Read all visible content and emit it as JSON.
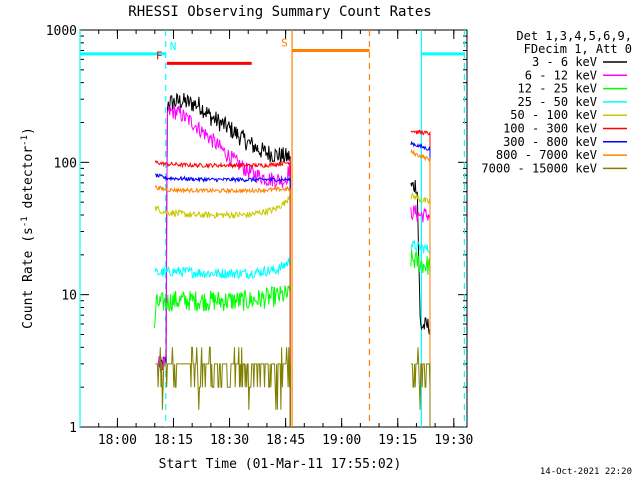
{
  "chart_data": {
    "type": "line",
    "title": "RHESSI Observing Summary Count Rates",
    "xlabel": "Start Time (01-Mar-11 17:55:02)",
    "ylabel": "Count Rate (s⁻¹ detector⁻¹)",
    "ylabel_parts": {
      "base": "Count Rate (s",
      "exp1": "-1",
      "mid": " detector",
      "exp2": "-1",
      "end": ")"
    },
    "yscale": "log",
    "ylim": [
      1,
      1000
    ],
    "xlim_minutes_after_start": [
      -5.04,
      98.5
    ],
    "x_ticks": [
      {
        "label": "18:00",
        "min": 4.97
      },
      {
        "label": "18:15",
        "min": 19.97
      },
      {
        "label": "18:30",
        "min": 34.97
      },
      {
        "label": "18:45",
        "min": 49.97
      },
      {
        "label": "19:00",
        "min": 64.97
      },
      {
        "label": "19:15",
        "min": 79.97
      },
      {
        "label": "19:30",
        "min": 94.97
      }
    ],
    "y_ticks": [
      {
        "label": "1",
        "v": 1
      },
      {
        "label": "10",
        "v": 10
      },
      {
        "label": "100",
        "v": 100
      },
      {
        "label": "1000",
        "v": 1000
      }
    ],
    "legend_header": [
      "Det 1,3,4,5,6,9,",
      "FDecim 1, Att 0"
    ],
    "legend_position": "right",
    "timestamp": "14-Oct-2021 22:20",
    "flags": [
      {
        "letter": "N",
        "color": "#00ffff",
        "level": 660,
        "segments": [
          [
            -5.04,
            17.9
          ],
          [
            86.3,
            97.8
          ]
        ]
      },
      {
        "letter": "F",
        "color": "#ff0000",
        "level": 560,
        "segments": [
          [
            18.2,
            40.9
          ]
        ]
      },
      {
        "letter": "S",
        "color": "#ff8000",
        "level": 700,
        "segments": [
          [
            51.7,
            72.4
          ]
        ]
      }
    ],
    "markers": [
      {
        "min": -5.04,
        "color": "#00ffff",
        "style": "solid"
      },
      {
        "min": 17.9,
        "color": "#00ffff",
        "style": "dashed"
      },
      {
        "min": 51.7,
        "color": "#ff8000",
        "style": "solid"
      },
      {
        "min": 72.4,
        "color": "#ff8000",
        "style": "dashed"
      },
      {
        "min": 86.3,
        "color": "#00ffff",
        "style": "solid"
      },
      {
        "min": 97.8,
        "color": "#00ffff",
        "style": "dashed"
      }
    ],
    "series": [
      {
        "name": "3 - 6 keV",
        "color": "#000000",
        "noise": 0.07,
        "seg1": [
          [
            15.9,
            3.0
          ],
          [
            17.6,
            3.0
          ],
          [
            18.0,
            3.2
          ],
          [
            18.3,
            280
          ],
          [
            22.0,
            290
          ],
          [
            27.0,
            270
          ],
          [
            30.0,
            220
          ],
          [
            35.0,
            180
          ],
          [
            40.0,
            140
          ],
          [
            44.0,
            120
          ],
          [
            50.0,
            110
          ],
          [
            51.2,
            110
          ]
        ],
        "seg2": [
          [
            83.5,
            65
          ],
          [
            84.9,
            68
          ],
          [
            85.2,
            60
          ],
          [
            86.0,
            5.8
          ],
          [
            88.6,
            5.8
          ]
        ]
      },
      {
        "name": "6 - 12 keV",
        "color": "#ff00ff",
        "noise": 0.06,
        "seg1": [
          [
            15.9,
            3.0
          ],
          [
            17.6,
            3.0
          ],
          [
            18.0,
            3.2
          ],
          [
            18.3,
            240
          ],
          [
            21.0,
            240
          ],
          [
            25.0,
            200
          ],
          [
            30.0,
            150
          ],
          [
            35.0,
            110
          ],
          [
            40.0,
            85
          ],
          [
            45.0,
            75
          ],
          [
            50.0,
            73
          ],
          [
            51.2,
            95
          ]
        ],
        "seg2": [
          [
            83.5,
            42
          ],
          [
            84.9,
            42
          ],
          [
            85.2,
            40
          ],
          [
            86.0,
            40
          ],
          [
            88.6,
            40
          ]
        ]
      },
      {
        "name": "12 - 25 keV",
        "color": "#00ff00",
        "noise": 0.08,
        "seg1": [
          [
            14.8,
            5.0
          ],
          [
            15.3,
            8.5
          ],
          [
            20.0,
            9.0
          ],
          [
            30.0,
            9.0
          ],
          [
            40.0,
            9.0
          ],
          [
            50.5,
            10
          ],
          [
            51.2,
            10
          ]
        ],
        "seg2": [
          [
            83.5,
            18.5
          ],
          [
            84.9,
            18
          ],
          [
            86.5,
            17
          ],
          [
            88.6,
            16.5
          ]
        ]
      },
      {
        "name": "25 - 50 keV",
        "color": "#00ffff",
        "noise": 0.04,
        "seg1": [
          [
            15.1,
            14.5
          ],
          [
            20.0,
            15.0
          ],
          [
            30.0,
            14.5
          ],
          [
            40.0,
            14.5
          ],
          [
            48.0,
            15.5
          ],
          [
            51.2,
            18
          ]
        ],
        "seg2": [
          [
            83.5,
            24
          ],
          [
            84.9,
            23
          ],
          [
            88.6,
            22
          ]
        ]
      },
      {
        "name": "50 - 100 keV",
        "color": "#c8c800",
        "noise": 0.025,
        "seg1": [
          [
            15.1,
            45
          ],
          [
            18.0,
            42
          ],
          [
            25.0,
            40
          ],
          [
            32.0,
            40
          ],
          [
            40.0,
            40
          ],
          [
            47.0,
            44
          ],
          [
            50.0,
            50
          ],
          [
            51.2,
            58
          ]
        ],
        "seg2": [
          [
            83.5,
            55
          ],
          [
            84.9,
            55
          ],
          [
            86.0,
            52
          ],
          [
            88.6,
            50
          ]
        ]
      },
      {
        "name": "100 - 300 keV",
        "color": "#ff0000",
        "noise": 0.015,
        "seg1": [
          [
            15.1,
            100
          ],
          [
            18.0,
            97
          ],
          [
            25.0,
            95
          ],
          [
            35.0,
            95
          ],
          [
            45.0,
            95
          ],
          [
            51.2,
            100
          ]
        ],
        "seg2": [
          [
            83.5,
            175
          ],
          [
            84.9,
            170
          ],
          [
            88.6,
            165
          ]
        ]
      },
      {
        "name": "300 - 800 keV",
        "color": "#0000ff",
        "noise": 0.015,
        "seg1": [
          [
            15.1,
            80
          ],
          [
            18.0,
            76
          ],
          [
            30.0,
            74
          ],
          [
            40.0,
            74
          ],
          [
            51.2,
            74
          ]
        ],
        "seg2": [
          [
            83.5,
            140
          ],
          [
            84.9,
            135
          ],
          [
            88.6,
            125
          ]
        ]
      },
      {
        "name": "800 - 7000 keV",
        "color": "#ff8000",
        "noise": 0.015,
        "seg1": [
          [
            15.1,
            65
          ],
          [
            18.0,
            62
          ],
          [
            30.0,
            61
          ],
          [
            40.0,
            61
          ],
          [
            51.2,
            63
          ]
        ],
        "seg2": [
          [
            83.5,
            120
          ],
          [
            84.9,
            115
          ],
          [
            88.6,
            105
          ]
        ]
      },
      {
        "name": "7000 - 15000 keV",
        "color": "#808000",
        "noise": 0.0,
        "seg1": [
          [
            15.1,
            3.0
          ],
          [
            51.2,
            3.0
          ]
        ],
        "seg2": [
          [
            83.5,
            3.0
          ],
          [
            88.6,
            3.0
          ]
        ]
      }
    ]
  }
}
